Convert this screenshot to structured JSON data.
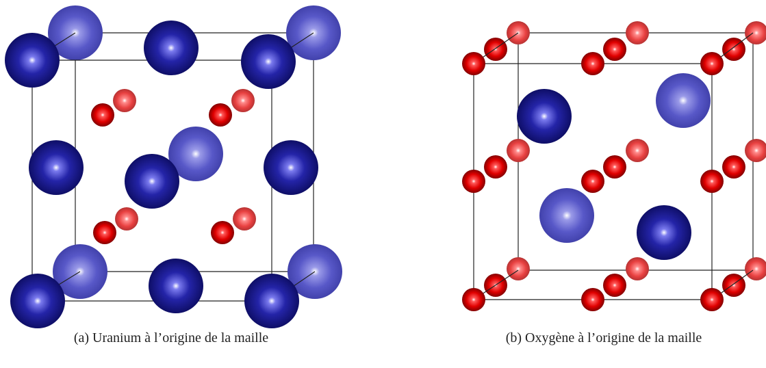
{
  "figure": {
    "subfigures": [
      {
        "caption": "(a) Uranium à l’origine de la maille"
      },
      {
        "caption": "(b) Oxygène à l’origine de la maille"
      }
    ]
  }
}
